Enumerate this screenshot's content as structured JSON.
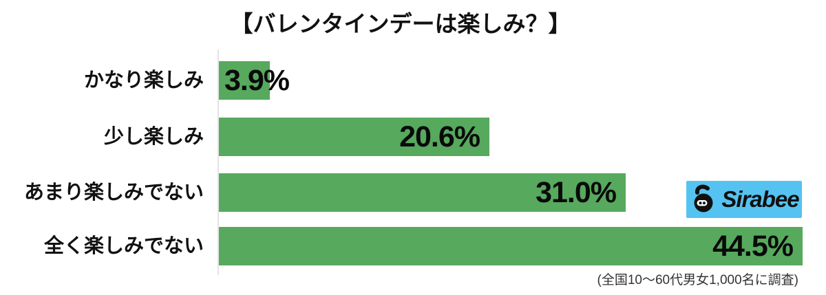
{
  "title": "【バレンタインデーは楽しみ？】",
  "footnote": "(全国10〜60代男女1,000名に調査)",
  "logo": {
    "text": "Sirabee",
    "icon": "sirabee-bee-icon",
    "background": "#55c3f1",
    "text_color": "#101010"
  },
  "colors": {
    "bar": "#56a95d",
    "axis_line": "#e3e3e3",
    "label_text": "#111111",
    "value_text": "#0a0a0a"
  },
  "chart_data": {
    "type": "bar",
    "orientation": "horizontal",
    "title": "【バレンタインデーは楽しみ？】",
    "categories": [
      "かなり楽しみ",
      "少し楽しみ",
      "あまり楽しみでない",
      "全く楽しみでない"
    ],
    "values": [
      3.9,
      20.6,
      31.0,
      44.5
    ],
    "value_labels": [
      "3.9%",
      "20.6%",
      "31.0%",
      "44.5%"
    ],
    "unit": "%",
    "xlim": [
      0,
      45
    ],
    "grid": false,
    "legend": false,
    "value_label_position": "inside-end (outside for smallest bar)",
    "source_note": "(全国10〜60代男女1,000名に調査)"
  }
}
